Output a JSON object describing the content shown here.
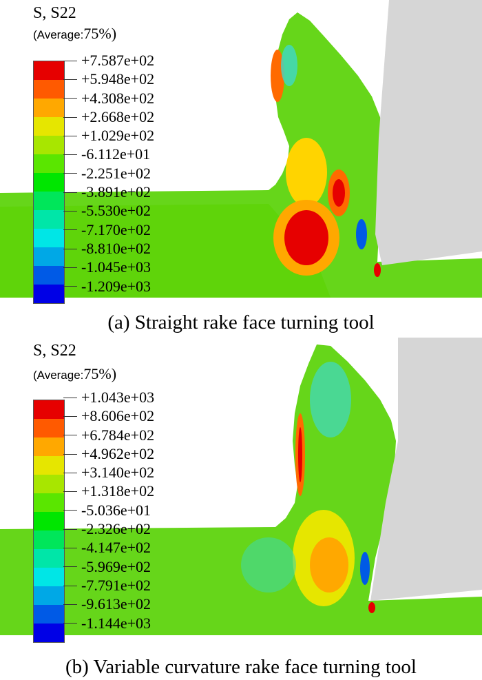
{
  "panels": [
    {
      "title": "S, S22",
      "average_prefix": "(Average:",
      "average_value": "75%)",
      "legend_values": [
        "+7.587e+02",
        "+5.948e+02",
        "+4.308e+02",
        "+2.668e+02",
        "+1.029e+02",
        "-6.112e+01",
        "-2.251e+02",
        "-3.891e+02",
        "-5.530e+02",
        "-7.170e+02",
        "-8.810e+02",
        "-1.045e+03",
        "-1.209e+03"
      ],
      "caption": "(a) Straight rake face turning tool"
    },
    {
      "title": "S, S22",
      "average_prefix": "(Average:",
      "average_value": "75%)",
      "legend_values": [
        "+1.043e+03",
        "+8.606e+02",
        "+6.784e+02",
        "+4.962e+02",
        "+3.140e+02",
        "+1.318e+02",
        "-5.036e+01",
        "-2.326e+02",
        "-4.147e+02",
        "-5.969e+02",
        "-7.791e+02",
        "-9.613e+02",
        "-1.144e+03"
      ],
      "caption": "(b) Variable curvature rake face turning tool"
    }
  ],
  "legend_colors": [
    "#e60000",
    "#ff5a00",
    "#ffa800",
    "#e6e600",
    "#a8e600",
    "#5ae600",
    "#00e600",
    "#00e65a",
    "#00e6a8",
    "#00e6e6",
    "#00a8e6",
    "#005ae6",
    "#0000e6"
  ],
  "tool_color": "#d6d6d6",
  "workpiece_color": "#66d61a"
}
